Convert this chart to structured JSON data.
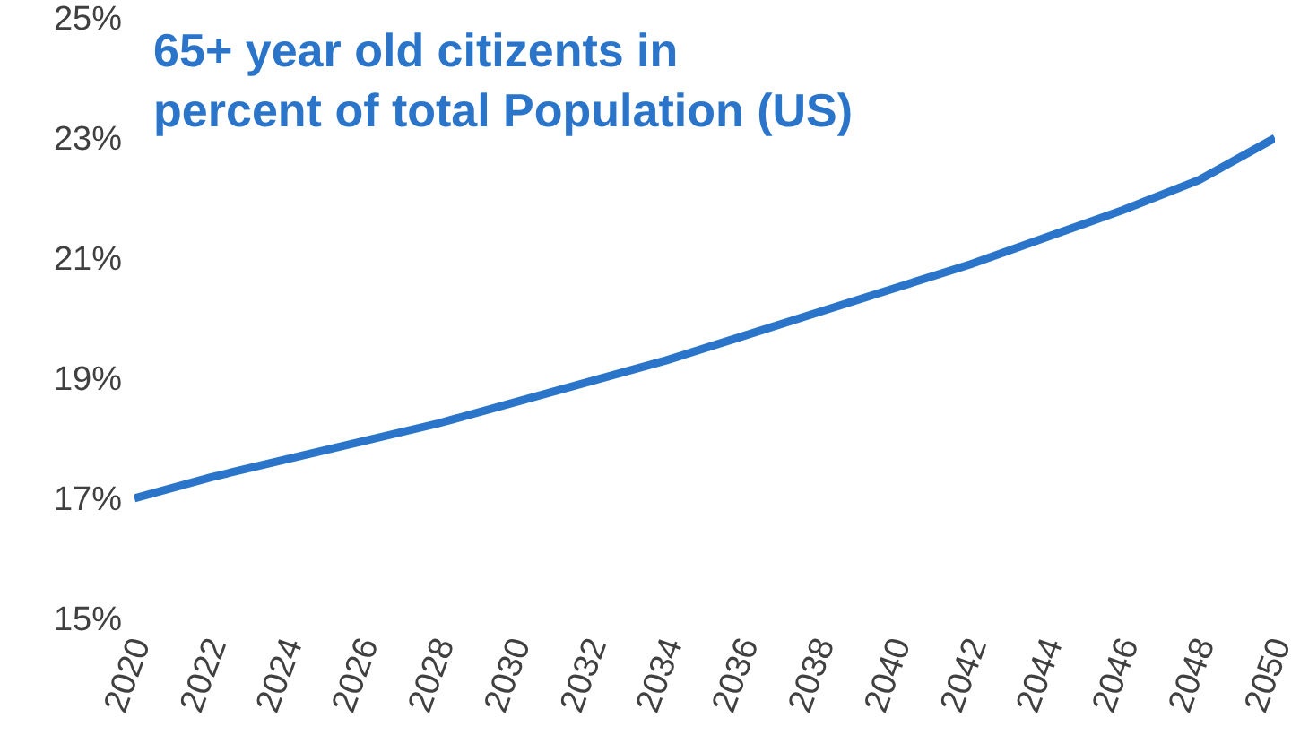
{
  "chart_data": {
    "type": "line",
    "title": "65+ year old citizents in\npercent of total Population (US)",
    "x": [
      2020,
      2022,
      2024,
      2026,
      2028,
      2030,
      2032,
      2034,
      2036,
      2038,
      2040,
      2042,
      2044,
      2046,
      2048,
      2050
    ],
    "series": [
      {
        "color": "#2a75c9",
        "values": [
          17.0,
          17.35,
          17.65,
          17.95,
          18.25,
          18.6,
          18.95,
          19.3,
          19.7,
          20.1,
          20.5,
          20.9,
          21.35,
          21.8,
          22.3,
          23.0
        ]
      }
    ],
    "xlim": [
      2020,
      2050
    ],
    "xticks": [
      2020,
      2022,
      2024,
      2026,
      2028,
      2030,
      2032,
      2034,
      2036,
      2038,
      2040,
      2042,
      2044,
      2046,
      2048,
      2050
    ],
    "ylim": [
      15,
      25
    ],
    "yticks": [
      {
        "value": 15,
        "label": "15%"
      },
      {
        "value": 17,
        "label": "17%"
      },
      {
        "value": 19,
        "label": "19%"
      },
      {
        "value": 21,
        "label": "21%"
      },
      {
        "value": 23,
        "label": "23%"
      },
      {
        "value": 25,
        "label": "25%"
      }
    ],
    "grid": false,
    "marker": "none",
    "line_style": "solid"
  }
}
